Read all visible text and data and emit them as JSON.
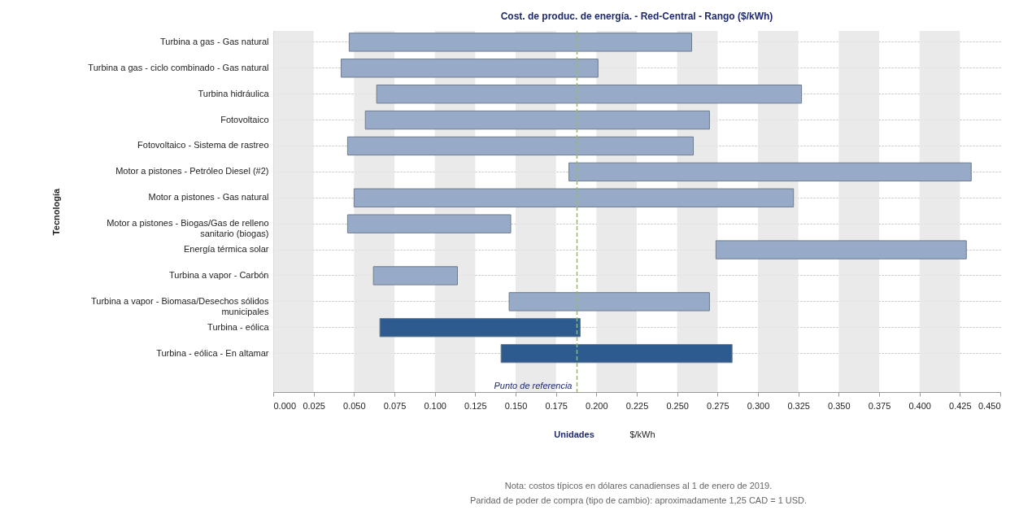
{
  "chart_data": {
    "type": "bar",
    "orientation": "horizontal",
    "title": "Cost. de produc. de energía. - Red-Central - Rango  ($/kWh)",
    "ylabel": "Tecnología",
    "categories": [
      "Turbina a gas - Gas natural",
      "Turbina a gas - ciclo combinado - Gas natural",
      "Turbina hidráulica",
      "Fotovoltaico",
      "Fotovoltaico - Sistema de rastreo",
      "Motor a pistones - Petróleo Diesel (#2)",
      "Motor a pistones - Gas natural",
      "Motor a pistones - Biogas/Gas de relleno sanitario (biogas)",
      "Energía térmica solar",
      "Turbina a vapor - Carbón",
      "Turbina a vapor - Biomasa/Desechos sólidos municipales",
      "Turbina - eólica",
      "Turbina - eólica - En altamar"
    ],
    "base": [
      0.047,
      0.042,
      0.064,
      0.057,
      0.046,
      0.183,
      0.05,
      0.046,
      0.274,
      0.062,
      0.146,
      0.066,
      0.141
    ],
    "values": [
      0.212,
      0.159,
      0.263,
      0.213,
      0.214,
      0.249,
      0.272,
      0.101,
      0.155,
      0.052,
      0.124,
      0.124,
      0.143
    ],
    "colors": [
      "#97abc8",
      "#97abc8",
      "#97abc8",
      "#97abc8",
      "#97abc8",
      "#97abc8",
      "#97abc8",
      "#97abc8",
      "#97abc8",
      "#97abc8",
      "#97abc8",
      "#2d5b8f",
      "#2d5b8f"
    ],
    "xlim": [
      0,
      0.45
    ],
    "xticks": [
      {
        "value": 0,
        "label": "0.000"
      },
      {
        "value": 0.025,
        "label": "0.025"
      },
      {
        "value": 0.05,
        "label": "0.050"
      },
      {
        "value": 0.075,
        "label": "0.075"
      },
      {
        "value": 0.1,
        "label": "0.100"
      },
      {
        "value": 0.125,
        "label": "0.125"
      },
      {
        "value": 0.15,
        "label": "0.150"
      },
      {
        "value": 0.175,
        "label": "0.175"
      },
      {
        "value": 0.2,
        "label": "0.200"
      },
      {
        "value": 0.225,
        "label": "0.225"
      },
      {
        "value": 0.25,
        "label": "0.250"
      },
      {
        "value": 0.275,
        "label": "0.275"
      },
      {
        "value": 0.3,
        "label": "0.300"
      },
      {
        "value": 0.325,
        "label": "0.325"
      },
      {
        "value": 0.35,
        "label": "0.350"
      },
      {
        "value": 0.375,
        "label": "0.375"
      },
      {
        "value": 0.4,
        "label": "0.400"
      },
      {
        "value": 0.425,
        "label": "0.425"
      },
      {
        "value": 0.45,
        "label": "0.450"
      }
    ],
    "grid": "y",
    "ref_lines": [
      {
        "axis": "x",
        "value": 0.188,
        "label": "Punto de referencia",
        "color": "#8dc63f",
        "line_style": "dashed"
      }
    ],
    "bands": [
      {
        "axis": "x",
        "from": 0,
        "to": 0.025,
        "color": "#e6e6e6"
      },
      {
        "axis": "x",
        "from": 0.05,
        "to": 0.075,
        "color": "#e6e6e6"
      },
      {
        "axis": "x",
        "from": 0.1,
        "to": 0.125,
        "color": "#e6e6e6"
      },
      {
        "axis": "x",
        "from": 0.15,
        "to": 0.175,
        "color": "#e6e6e6"
      },
      {
        "axis": "x",
        "from": 0.2,
        "to": 0.225,
        "color": "#e6e6e6"
      },
      {
        "axis": "x",
        "from": 0.25,
        "to": 0.275,
        "color": "#e6e6e6"
      },
      {
        "axis": "x",
        "from": 0.3,
        "to": 0.325,
        "color": "#e6e6e6"
      },
      {
        "axis": "x",
        "from": 0.35,
        "to": 0.375,
        "color": "#e6e6e6"
      },
      {
        "axis": "x",
        "from": 0.4,
        "to": 0.425,
        "color": "#e6e6e6"
      }
    ],
    "annotations": [
      "Unidades",
      "$/kWh",
      "Nota: costos típicos en dólares canadienses al 1 de enero de 2019.",
      "Paridad de poder de compra (tipo de cambio): aproximadamente 1,25 CAD = 1 USD."
    ]
  }
}
